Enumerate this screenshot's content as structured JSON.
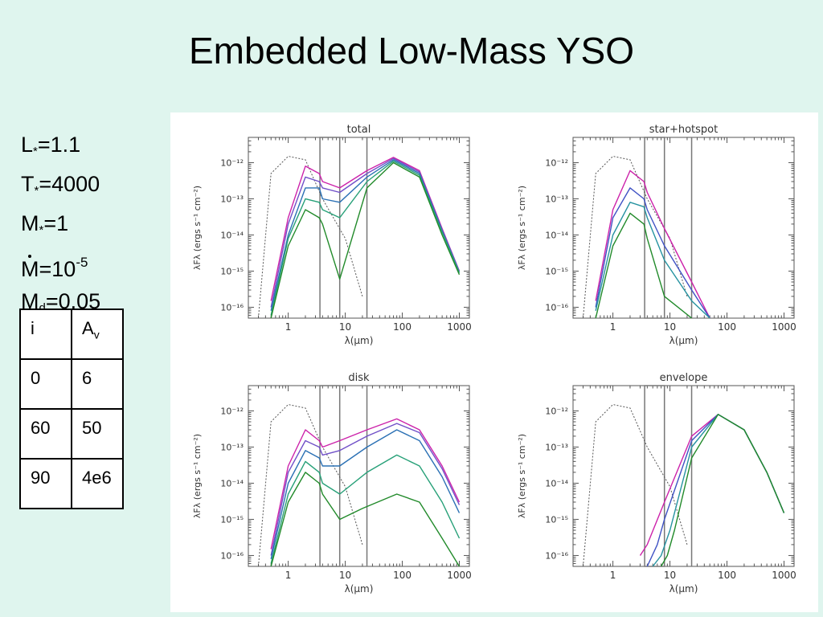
{
  "slide": {
    "title": "Embedded Low-Mass YSO"
  },
  "params": {
    "L_label": "L",
    "L_sub": "*",
    "L_val": "=1.1",
    "T_label": "T",
    "T_sub": "*",
    "T_val": "=4000",
    "M_label": "M",
    "M_sub": "*",
    "M_val": "=1",
    "Mdot_label": "M",
    "Mdot_val": "=10",
    "Mdot_exp": "-5",
    "Md_label": "M",
    "Md_sub": "d",
    "Md_val": "=0.05"
  },
  "table": {
    "header": {
      "i": "i",
      "av": "A",
      "av_sub": "v"
    },
    "rows": [
      {
        "i": "0",
        "av": "6"
      },
      {
        "i": "60",
        "av": "50"
      },
      {
        "i": "90",
        "av": "4e6"
      }
    ]
  },
  "chart_common": {
    "xlabel": "λ(μm)",
    "ylabel": "λFλ (ergs s⁻¹ cm⁻²)",
    "xticks": [
      "1",
      "10",
      "100",
      "1000"
    ],
    "yticks": [
      "10⁻¹²",
      "10⁻¹³",
      "10⁻¹⁴",
      "10⁻¹⁵",
      "10⁻¹⁶"
    ],
    "xlim": [
      0.2,
      1500
    ],
    "ylim": [
      5e-17,
      5e-12
    ],
    "xscale": "log",
    "yscale": "log",
    "box_um": [
      3.6,
      8.0
    ],
    "line_um": 24,
    "colors": [
      "#cc22aa",
      "#a33cc4",
      "#7050c8",
      "#3f52c4",
      "#2a70b4",
      "#2592a0",
      "#27a078",
      "#2f9a4a",
      "#218a2a"
    ]
  },
  "chart_data": [
    {
      "type": "line",
      "title": "total",
      "series": [
        {
          "x": [
            0.5,
            1,
            2,
            3.5,
            4,
            8,
            24,
            70,
            200,
            500,
            1000
          ],
          "y": [
            1.5e-16,
            3e-14,
            8e-13,
            5e-13,
            3e-13,
            2e-13,
            6e-13,
            1.4e-12,
            6e-13,
            1.5e-14,
            1e-15
          ]
        },
        {
          "x": [
            0.5,
            1,
            2,
            3.5,
            4,
            8,
            24,
            70,
            200,
            500,
            1000
          ],
          "y": [
            1e-16,
            2e-14,
            4e-13,
            3e-13,
            2e-13,
            1.5e-13,
            5e-13,
            1.3e-12,
            5.5e-13,
            1.4e-14,
            1e-15
          ]
        },
        {
          "x": [
            0.5,
            1,
            2,
            3.5,
            4,
            8,
            24,
            70,
            200,
            500,
            1000
          ],
          "y": [
            8e-17,
            1e-14,
            2e-13,
            2e-13,
            1e-13,
            8e-14,
            4e-13,
            1.2e-12,
            5e-13,
            1.3e-14,
            9e-16
          ]
        },
        {
          "x": [
            0.5,
            1,
            2,
            3.5,
            4,
            8,
            24,
            70,
            200,
            500,
            1000
          ],
          "y": [
            6e-17,
            8e-15,
            1e-13,
            8e-14,
            5e-14,
            3e-14,
            3e-13,
            1.1e-12,
            4.5e-13,
            1.2e-14,
            9e-16
          ]
        },
        {
          "x": [
            0.5,
            1,
            2,
            3.5,
            4,
            8,
            24,
            70,
            200,
            500,
            1000
          ],
          "y": [
            5e-17,
            5e-15,
            5e-14,
            3e-14,
            2e-14,
            6e-16,
            2e-13,
            1e-12,
            4e-13,
            1e-14,
            8e-16
          ]
        }
      ],
      "reference_star": {
        "x": [
          0.3,
          0.5,
          1,
          2,
          4,
          10,
          20
        ],
        "y": [
          5e-17,
          5e-13,
          1.5e-12,
          1.2e-12,
          1e-13,
          8e-15,
          2e-16
        ]
      }
    },
    {
      "type": "line",
      "title": "star+hotspot",
      "series": [
        {
          "x": [
            0.5,
            1,
            2,
            3.5,
            4,
            8,
            24,
            50
          ],
          "y": [
            1.5e-16,
            5e-14,
            6e-13,
            3e-13,
            1.5e-13,
            1.5e-14,
            5e-16,
            5e-17
          ]
        },
        {
          "x": [
            0.5,
            1,
            2,
            3.5,
            4,
            8,
            24,
            50
          ],
          "y": [
            1e-16,
            3e-14,
            2e-13,
            1e-13,
            5e-14,
            5e-15,
            3e-16,
            5e-17
          ]
        },
        {
          "x": [
            0.5,
            1,
            2,
            3.5,
            4,
            8,
            24,
            50
          ],
          "y": [
            8e-17,
            1e-14,
            8e-14,
            6e-14,
            3e-14,
            2e-15,
            1.5e-16,
            5e-17
          ]
        },
        {
          "x": [
            0.5,
            1,
            2,
            3.5,
            4,
            8,
            24
          ],
          "y": [
            5e-17,
            5e-15,
            4e-14,
            2e-14,
            8e-15,
            2e-16,
            5e-17
          ]
        }
      ],
      "reference_star": {
        "x": [
          0.3,
          0.5,
          1,
          2,
          4,
          10,
          20
        ],
        "y": [
          5e-17,
          5e-13,
          1.5e-12,
          1.2e-12,
          1e-13,
          8e-15,
          2e-16
        ]
      }
    },
    {
      "type": "line",
      "title": "disk",
      "series": [
        {
          "x": [
            0.5,
            1,
            2,
            3.5,
            4,
            8,
            24,
            80,
            200,
            500,
            1000
          ],
          "y": [
            1.5e-16,
            3e-14,
            3e-13,
            1.5e-13,
            1e-13,
            1.5e-13,
            3e-13,
            6e-13,
            3e-13,
            3e-14,
            3e-15
          ]
        },
        {
          "x": [
            0.5,
            1,
            2,
            3.5,
            4,
            8,
            24,
            80,
            200,
            500,
            1000
          ],
          "y": [
            1e-16,
            2e-14,
            1.5e-13,
            1e-13,
            6e-14,
            8e-14,
            2e-13,
            4.5e-13,
            2.5e-13,
            2.5e-14,
            2.5e-15
          ]
        },
        {
          "x": [
            0.5,
            1,
            2,
            3.5,
            4,
            8,
            24,
            80,
            200,
            500,
            1000
          ],
          "y": [
            8e-17,
            1e-14,
            8e-14,
            5e-14,
            3e-14,
            3e-14,
            1e-13,
            3e-13,
            1.5e-13,
            1.5e-14,
            1.5e-15
          ]
        },
        {
          "x": [
            0.5,
            1,
            2,
            3.5,
            4,
            8,
            24,
            80,
            200,
            500,
            1000
          ],
          "y": [
            6e-17,
            5e-15,
            4e-14,
            2e-14,
            1e-14,
            5e-15,
            2e-14,
            6e-14,
            3e-14,
            3e-15,
            3e-16
          ]
        },
        {
          "x": [
            0.5,
            1,
            2,
            3.5,
            4,
            8,
            20,
            80,
            200,
            500,
            1000
          ],
          "y": [
            5e-17,
            3e-15,
            2e-14,
            1e-14,
            5e-15,
            1e-15,
            2e-15,
            5e-15,
            3e-15,
            3e-16,
            5e-17
          ]
        }
      ],
      "reference_star": {
        "x": [
          0.3,
          0.5,
          1,
          2,
          4,
          10,
          20
        ],
        "y": [
          5e-17,
          5e-13,
          1.5e-12,
          1.2e-12,
          1e-13,
          8e-15,
          2e-16
        ]
      }
    },
    {
      "type": "line",
      "title": "envelope",
      "series": [
        {
          "x": [
            3,
            4,
            8,
            24,
            70,
            200,
            500,
            1000
          ],
          "y": [
            1e-16,
            2e-16,
            3e-15,
            2e-13,
            8e-13,
            3e-13,
            2e-14,
            1.5e-15
          ]
        },
        {
          "x": [
            4,
            6,
            8,
            24,
            70,
            200,
            500,
            1000
          ],
          "y": [
            5e-17,
            2e-16,
            1e-15,
            1.5e-13,
            8e-13,
            3e-13,
            2e-14,
            1.5e-15
          ]
        },
        {
          "x": [
            5,
            7,
            10,
            24,
            70,
            200,
            500,
            1000
          ],
          "y": [
            5e-17,
            1e-16,
            5e-16,
            1e-13,
            8e-13,
            3e-13,
            2e-14,
            1.5e-15
          ]
        },
        {
          "x": [
            7,
            9,
            12,
            24,
            70,
            200,
            500,
            1000
          ],
          "y": [
            5e-17,
            1e-16,
            5e-16,
            5e-14,
            8e-13,
            3e-13,
            2e-14,
            1.5e-15
          ]
        }
      ],
      "reference_star": {
        "x": [
          0.3,
          0.5,
          1,
          2,
          4,
          10,
          20
        ],
        "y": [
          5e-17,
          5e-13,
          1.5e-12,
          1.2e-12,
          1e-13,
          8e-15,
          2e-16
        ]
      }
    }
  ]
}
